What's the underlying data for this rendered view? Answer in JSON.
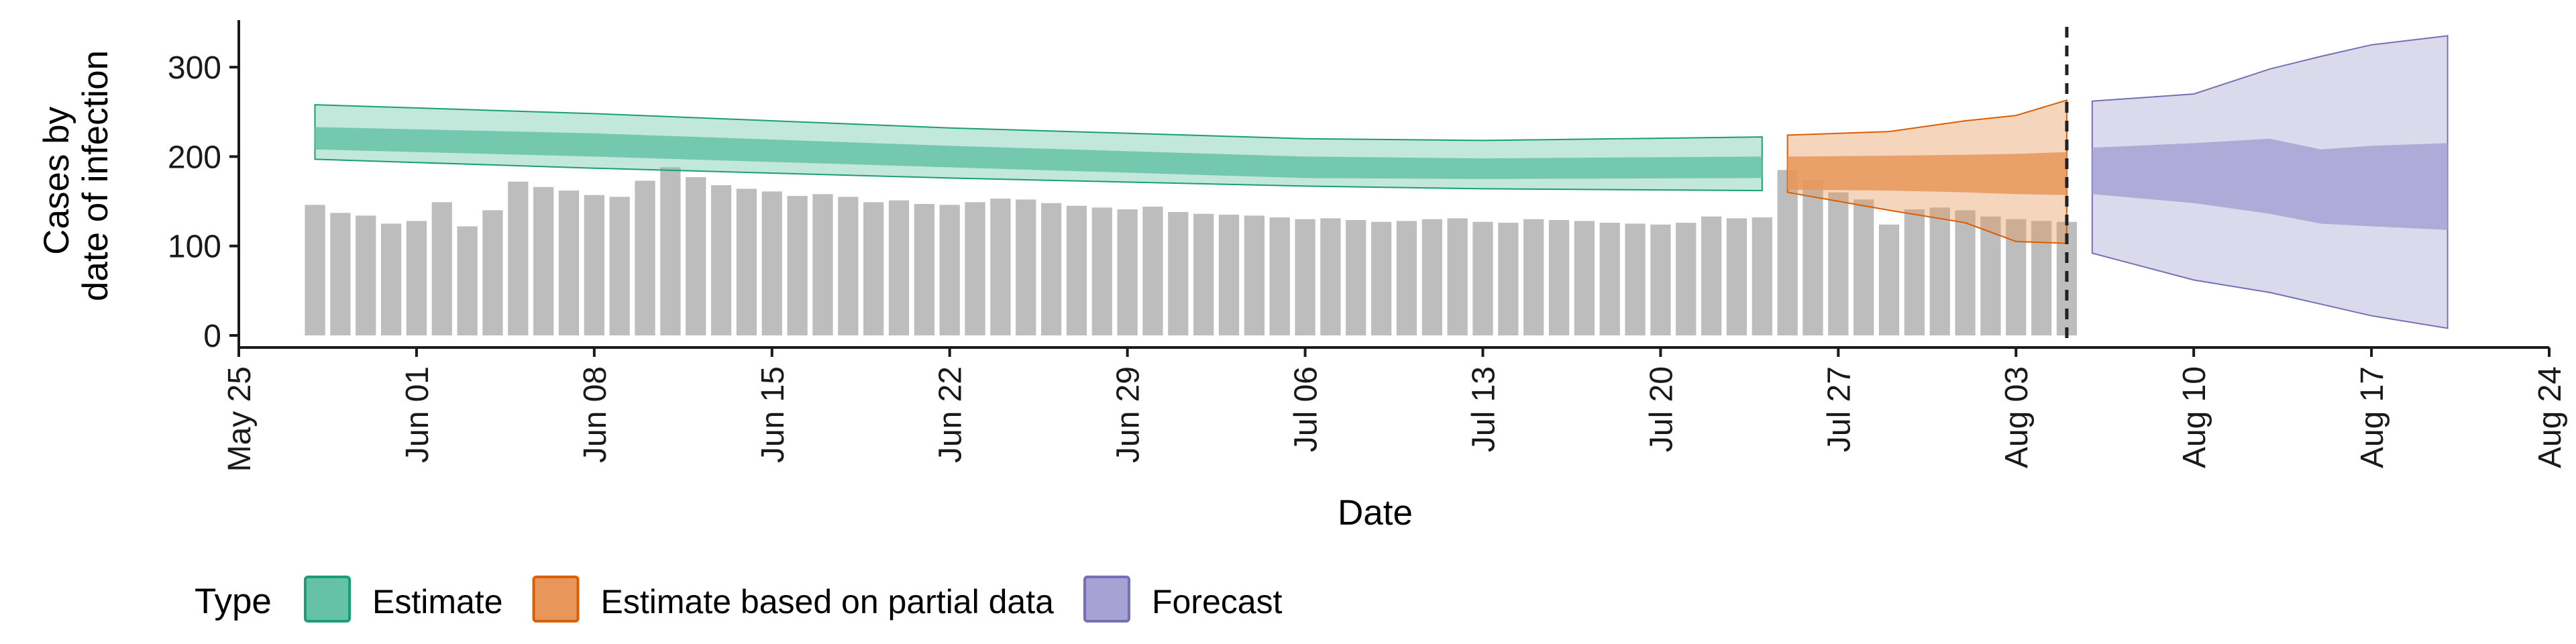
{
  "chart_data": {
    "type": "bar",
    "title": "",
    "xlabel": "Date",
    "ylabel": [
      "Cases by",
      "date of infection"
    ],
    "xlim": [
      "2020-05-25",
      "2020-08-24"
    ],
    "ylim": [
      0,
      350
    ],
    "x_ticks": [
      "May 25",
      "Jun 01",
      "Jun 08",
      "Jun 15",
      "Jun 22",
      "Jun 29",
      "Jul 06",
      "Jul 13",
      "Jul 20",
      "Jul 27",
      "Aug 03",
      "Aug 10",
      "Aug 17",
      "Aug 24"
    ],
    "y_ticks": [
      0,
      100,
      200,
      300
    ],
    "grid": false,
    "legend_position": "bottom-left",
    "reported_cases": {
      "start_date": "2020-05-28",
      "values": [
        146,
        137,
        134,
        125,
        128,
        149,
        122,
        140,
        172,
        166,
        162,
        157,
        155,
        173,
        188,
        177,
        168,
        164,
        161,
        156,
        158,
        155,
        149,
        151,
        147,
        146,
        149,
        153,
        152,
        148,
        145,
        143,
        141,
        144,
        138,
        136,
        135,
        134,
        132,
        130,
        131,
        129,
        127,
        128,
        130,
        131,
        127,
        126,
        130,
        129,
        128,
        126,
        125,
        124,
        126,
        133,
        131,
        132,
        185,
        174,
        160,
        152,
        124,
        141,
        143,
        140,
        133,
        130,
        128,
        127
      ],
      "color": "#bdbdbd"
    },
    "dashed_line_date": "2020-08-05",
    "series": [
      {
        "name": "Estimate",
        "color": "#1b9e77",
        "fill": "#66c2a5",
        "x": [
          "2020-05-28",
          "2020-06-08",
          "2020-06-22",
          "2020-07-06",
          "2020-07-13",
          "2020-07-24"
        ],
        "outer_upper": [
          258,
          248,
          232,
          220,
          218,
          222
        ],
        "inner_upper": [
          233,
          226,
          212,
          200,
          198,
          200
        ],
        "inner_lower": [
          208,
          200,
          188,
          176,
          175,
          176
        ],
        "outer_lower": [
          197,
          187,
          176,
          167,
          164,
          162
        ]
      },
      {
        "name": "Estimate based on partial data",
        "color": "#d95f02",
        "fill": "#e8965a",
        "x": [
          "2020-07-25",
          "2020-07-29",
          "2020-08-01",
          "2020-08-03",
          "2020-08-05"
        ],
        "outer_upper": [
          224,
          228,
          240,
          246,
          263
        ],
        "inner_upper": [
          200,
          201,
          202,
          203,
          205
        ],
        "inner_lower": [
          163,
          162,
          160,
          158,
          157
        ],
        "outer_lower": [
          160,
          140,
          126,
          105,
          103
        ]
      },
      {
        "name": "Forecast",
        "color": "#7570b3",
        "fill": "#a6a2d3",
        "x": [
          "2020-08-06",
          "2020-08-10",
          "2020-08-13",
          "2020-08-15",
          "2020-08-17",
          "2020-08-20"
        ],
        "outer_upper": [
          262,
          270,
          298,
          312,
          325,
          335
        ],
        "inner_upper": [
          210,
          215,
          220,
          208,
          212,
          215
        ],
        "inner_lower": [
          158,
          148,
          136,
          125,
          122,
          118
        ],
        "outer_lower": [
          92,
          62,
          48,
          35,
          22,
          8
        ]
      }
    ]
  },
  "legend": {
    "title": "Type",
    "items": [
      {
        "label": "Estimate",
        "fill": "#66c2a5",
        "stroke": "#1b9e77"
      },
      {
        "label": "Estimate based on partial data",
        "fill": "#e8965a",
        "stroke": "#d95f02"
      },
      {
        "label": "Forecast",
        "fill": "#a6a2d3",
        "stroke": "#7570b3"
      }
    ]
  }
}
